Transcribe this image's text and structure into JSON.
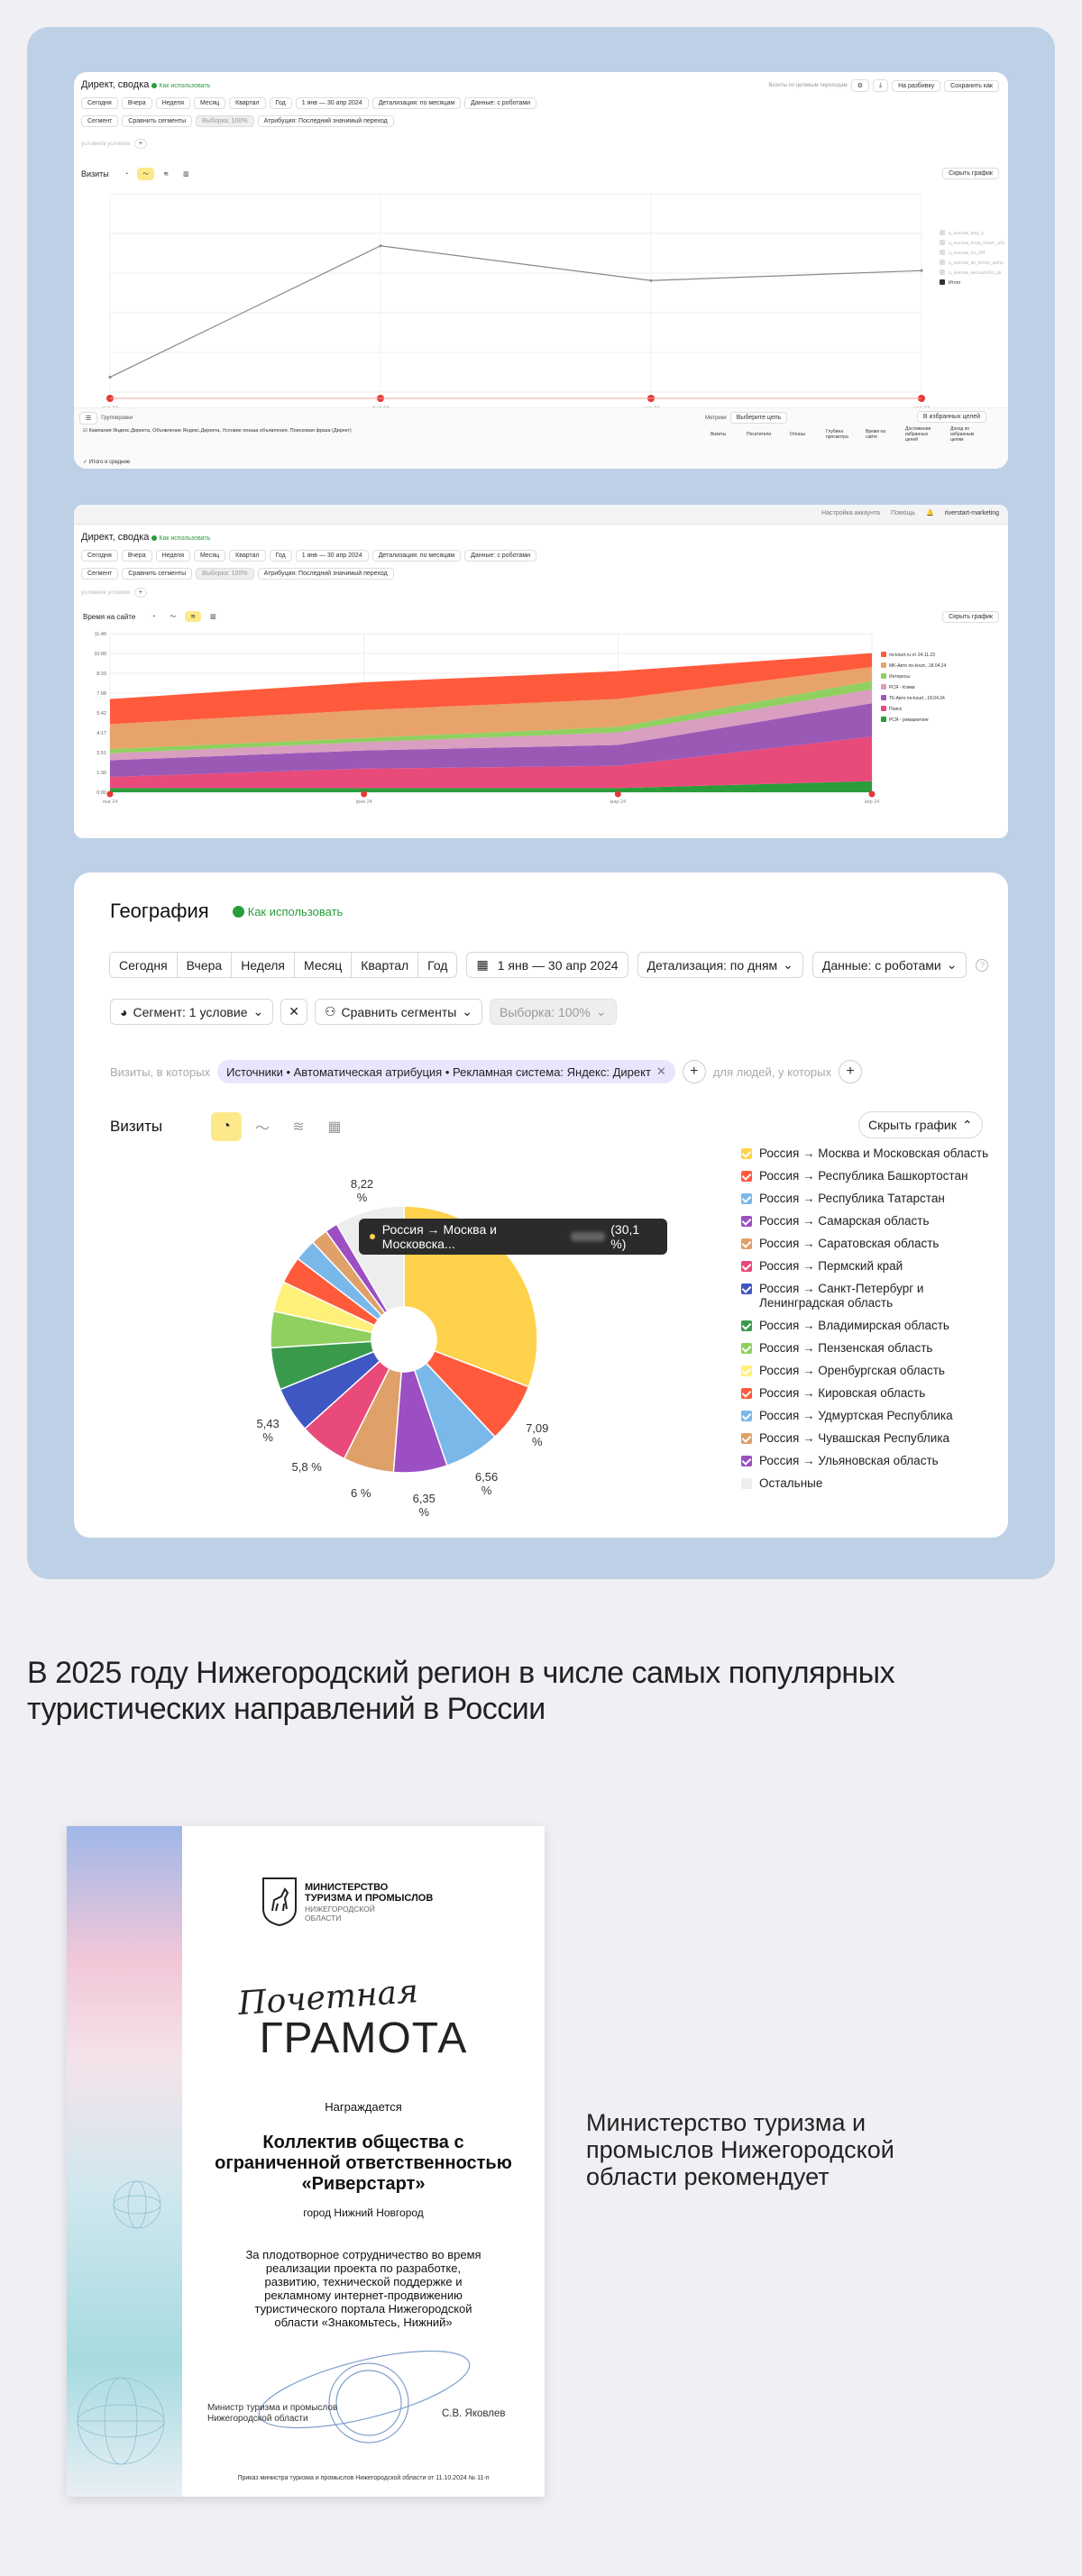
{
  "card1": {
    "title": "Директ, сводка",
    "how_to": "Как использовать",
    "top_right": [
      "Визиты по целевым переходам",
      "На разбивку",
      "Сохранить как"
    ],
    "periods": [
      "Сегодня",
      "Вчера",
      "Неделя",
      "Месяц",
      "Квартал",
      "Год"
    ],
    "date_range": "1 янв — 30 апр 2024",
    "detail": "Детализация: по месяцам",
    "data_mode": "Данные: с роботами",
    "segment": "Сегмент",
    "compare": "Сравнить сегменты",
    "sample": "Выборка: 100%",
    "attribution": "Атрибуция: Последний значимый переход",
    "filter_text": "условие/в условиях",
    "chart_label": "Визиты",
    "hide_chart": "Скрыть график",
    "chart_data": {
      "type": "line",
      "title": "",
      "categories": [
        "янв 24",
        "фев 24",
        "мар 24",
        "апр 24"
      ],
      "ylim": [
        0,
        4000
      ],
      "series": [
        {
          "name": "Визиты",
          "values": [
            300,
            2950,
            2250,
            2450
          ]
        }
      ],
      "legend": [
        "ц_ньюзак_вид_а",
        "ц_ньюзак_вход_полит_абс",
        "ц_ньюзак_по_ИЯ",
        "ц_ньюзак_вз_потол_шопа",
        "ц_ньюзак_мегаштаба_цв",
        "Итого"
      ],
      "grid": true,
      "legend_position": "right"
    },
    "group_label": "Группировки",
    "goals_label": "Метрики",
    "pick_goals": "Выберите цель",
    "favorites": "В избранных целей",
    "table_headers": [
      "Визиты",
      "Посетители",
      "Отказы",
      "Глубина просмотра",
      "Время на сайте",
      "Достижения избранных целей",
      "Доход по избранным целям"
    ],
    "row_label": "Кампания Яндекс.Директа, Объявление Яндекс.Директа, Условие показа объявления, Поисковая фраза (Директ)",
    "totals_label": "Итого и средние"
  },
  "card2": {
    "title": "Директ, сводка",
    "how_to": "Как использовать",
    "header_items": [
      "Настройка аккаунта",
      "Помощь",
      "riverstart-marketing"
    ],
    "periods": [
      "Сегодня",
      "Вчера",
      "Неделя",
      "Месяц",
      "Квартал",
      "Год"
    ],
    "date_range": "1 янв — 30 апр 2024",
    "detail": "Детализация: по месяцам",
    "data_mode": "Данные: с роботами",
    "segment": "Сегмент",
    "compare": "Сравнить сегменты",
    "sample": "Выборка: 100%",
    "attribution": "Атрибуция: Последний значимый переход",
    "filter_text": "условие/в условиях",
    "chart_label": "Время на сайте",
    "hide_chart": "Скрыть график",
    "chart_data": {
      "type": "area",
      "title": "",
      "categories": [
        "янв 24",
        "фев 24",
        "мар 24",
        "апр 24"
      ],
      "ylim": [
        0,
        11.4
      ],
      "yticks": [
        "0:00",
        "1:30",
        "2:51",
        "4:17",
        "5:42",
        "7:08",
        "8:33",
        "10:00",
        "11:40"
      ],
      "series": [
        {
          "name": "РСЯ - ремаркетинг",
          "values": [
            0.3,
            0.3,
            0.3,
            0.8
          ],
          "color": "#2a9d3a"
        },
        {
          "name": "Поиск",
          "values": [
            0.8,
            1.4,
            1.6,
            3.2
          ],
          "color": "#e84a7a"
        },
        {
          "name": "ТК-Авто по-kourt...18.04.24",
          "values": [
            1.2,
            1.3,
            1.5,
            2.4
          ],
          "color": "#9b59b6"
        },
        {
          "name": "РСЯ - Клики",
          "values": [
            0.5,
            0.6,
            0.9,
            1.0
          ],
          "color": "#d99ec0"
        },
        {
          "name": "Интересы",
          "values": [
            0.3,
            0.3,
            0.4,
            0.6
          ],
          "color": "#8fd060"
        },
        {
          "name": "MK-Авто по-kourt...18.04.24",
          "values": [
            1.8,
            2.0,
            2.0,
            1.0
          ],
          "color": "#e8a36a"
        },
        {
          "name": "по-kourt.ru от 24.11.23",
          "values": [
            1.8,
            2.0,
            2.0,
            1.0
          ],
          "color": "#ff5a3c"
        }
      ],
      "grid": true,
      "legend_position": "right"
    }
  },
  "card3": {
    "title": "География",
    "how_to": "Как использовать",
    "periods": [
      "Сегодня",
      "Вчера",
      "Неделя",
      "Месяц",
      "Квартал",
      "Год"
    ],
    "date_range": "1 янв — 30 апр 2024",
    "detail": "Детализация: по дням",
    "data_mode": "Данные: с роботами",
    "segment": "Сегмент: 1 условие",
    "compare": "Сравнить сегменты",
    "sample": "Выборка: 100%",
    "visits_in_which": "Визиты, в которых",
    "filter_chip": "Источники • Автоматическая атрибуция • Рекламная система: Яндекс: Директ",
    "for_people": "для людей, у которых",
    "chart_label": "Визиты",
    "hide_chart": "Скрыть график",
    "tooltip_label": "Россия → Москва и Московска...",
    "tooltip_pct": "(30,1 %)",
    "chart_data": {
      "type": "pie",
      "title": "",
      "slices": [
        {
          "label": "Россия → Москва и Московская область",
          "value": 30.1,
          "color": "#ffd24d"
        },
        {
          "label": "Россия → Республика Башкортостан",
          "value": 7.09,
          "color": "#ff5a3c"
        },
        {
          "label": "Россия → Республика Татарстан",
          "value": 6.56,
          "color": "#7ab8ea"
        },
        {
          "label": "Россия → Самарская область",
          "value": 6.35,
          "color": "#9b4fc2"
        },
        {
          "label": "Россия → Саратовская область",
          "value": 6.0,
          "color": "#e0a06a"
        },
        {
          "label": "Россия → Пермский край",
          "value": 5.8,
          "color": "#e84a7a"
        },
        {
          "label": "Россия → Санкт-Петербург и Ленинградская область",
          "value": 5.43,
          "color": "#3e57c2"
        },
        {
          "label": "Россия → Владимирская область",
          "value": 5.0,
          "color": "#3a9a4c"
        },
        {
          "label": "Россия → Пензенская область",
          "value": 4.3,
          "color": "#8fd060"
        },
        {
          "label": "Россия → Оренбургская область",
          "value": 3.6,
          "color": "#fff07a"
        },
        {
          "label": "Россия → Кировская область",
          "value": 3.2,
          "color": "#ff5a3c"
        },
        {
          "label": "Россия → Удмуртская Республика",
          "value": 2.6,
          "color": "#7ab8ea"
        },
        {
          "label": "Россия → Чувашская Республика",
          "value": 2.0,
          "color": "#e0a06a"
        },
        {
          "label": "Россия → Ульяновская область",
          "value": 1.5,
          "color": "#9b4fc2"
        },
        {
          "label": "Остальные",
          "value": 8.22,
          "color": "#ededed"
        }
      ],
      "data_labels": [
        "8,22 %",
        "7,09 %",
        "6,56 %",
        "6,35 %",
        "6 %",
        "5,8 %",
        "5,43 %"
      ]
    }
  },
  "headline": "В 2025 году Нижегородский регион в числе самых популярных туристических направлений в России",
  "certificate": {
    "ministry_line1": "МИНИСТЕРСТВО",
    "ministry_line2": "ТУРИЗМА И ПРОМЫСЛОВ",
    "ministry_region_line1": "НИЖЕГОРОДСКОЙ",
    "ministry_region_line2": "ОБЛАСТИ",
    "script_title": "Почетная",
    "title": "ГРАМОТА",
    "awarded": "Награждается",
    "recipient_line1": "Коллектив общества с",
    "recipient_line2": "ограниченной ответственностью",
    "recipient_line3": "«Риверстарт»",
    "city": "город Нижний Новгород",
    "reason_line1": "За плодотворное сотрудничество во время",
    "reason_line2": "реализации проекта по разработке,",
    "reason_line3": "развитию, технической поддержке и",
    "reason_line4": "рекламному интернет-продвижению",
    "reason_line5": "туристического портала Нижегородской",
    "reason_line6": "области «Знакомьтесь, Нижний»",
    "signer_title_line1": "Министр туризма и промыслов",
    "signer_title_line2": "Нижегородской области",
    "signer_name": "С.В. Яковлев",
    "order": "Приказ министра туризма и промыслов Нижегородской области от 11.10.2024 № 11-п"
  },
  "recommend": "Министерство туризма и промыслов Нижегородской области рекомендует"
}
